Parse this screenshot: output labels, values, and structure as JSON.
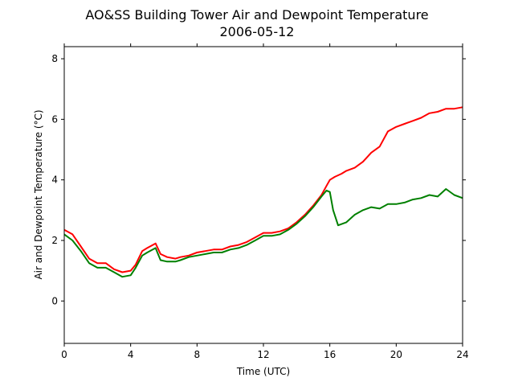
{
  "chart_data": {
    "type": "line",
    "title": "AO&SS Building Tower Air and Dewpoint Temperature",
    "subtitle": "2006-05-12",
    "xlabel": "Time (UTC)",
    "ylabel": "Air and Dewpoint Temperature (°C)",
    "xlim": [
      0,
      24
    ],
    "ylim": [
      -1.4,
      8.4
    ],
    "xticks": [
      "0",
      "4",
      "8",
      "12",
      "16",
      "20",
      "24"
    ],
    "yticks": [
      "0",
      "2",
      "4",
      "6",
      "8"
    ],
    "grid": false,
    "legend": "none",
    "series": [
      {
        "color": "#ff0000",
        "x": [
          0,
          0.5,
          1,
          1.5,
          2,
          2.5,
          3,
          3.5,
          4,
          4.3,
          4.7,
          5,
          5.5,
          5.8,
          6.2,
          6.7,
          7,
          7.5,
          8,
          8.5,
          9,
          9.5,
          10,
          10.5,
          11,
          11.5,
          12,
          12.5,
          13,
          13.5,
          14,
          14.5,
          15,
          15.5,
          15.8,
          16,
          16.3,
          16.7,
          17,
          17.5,
          18,
          18.5,
          19,
          19.5,
          20,
          20.5,
          21,
          21.5,
          22,
          22.5,
          23,
          23.5,
          24
        ],
        "y": [
          2.35,
          2.2,
          1.8,
          1.4,
          1.25,
          1.25,
          1.05,
          0.95,
          1.0,
          1.2,
          1.65,
          1.75,
          1.9,
          1.55,
          1.45,
          1.4,
          1.45,
          1.5,
          1.6,
          1.65,
          1.7,
          1.7,
          1.8,
          1.85,
          1.95,
          2.1,
          2.25,
          2.25,
          2.3,
          2.4,
          2.6,
          2.85,
          3.15,
          3.5,
          3.8,
          4.0,
          4.1,
          4.2,
          4.3,
          4.4,
          4.6,
          4.9,
          5.1,
          5.6,
          5.75,
          5.85,
          5.95,
          6.05,
          6.2,
          6.25,
          6.35,
          6.35,
          6.4
        ]
      },
      {
        "color": "#008000",
        "x": [
          0,
          0.5,
          1,
          1.5,
          2,
          2.5,
          3,
          3.5,
          4,
          4.3,
          4.7,
          5,
          5.5,
          5.8,
          6.2,
          6.7,
          7,
          7.5,
          8,
          8.5,
          9,
          9.5,
          10,
          10.5,
          11,
          11.5,
          12,
          12.5,
          13,
          13.5,
          14,
          14.5,
          15,
          15.5,
          15.8,
          16,
          16.2,
          16.5,
          17,
          17.5,
          18,
          18.5,
          19,
          19.5,
          20,
          20.5,
          21,
          21.5,
          22,
          22.5,
          23,
          23.5,
          24
        ],
        "y": [
          2.2,
          2.0,
          1.65,
          1.25,
          1.1,
          1.1,
          0.95,
          0.8,
          0.85,
          1.1,
          1.5,
          1.6,
          1.75,
          1.35,
          1.3,
          1.3,
          1.35,
          1.45,
          1.5,
          1.55,
          1.6,
          1.6,
          1.7,
          1.75,
          1.85,
          2.0,
          2.15,
          2.15,
          2.2,
          2.35,
          2.55,
          2.8,
          3.1,
          3.45,
          3.65,
          3.6,
          3.0,
          2.5,
          2.6,
          2.85,
          3.0,
          3.1,
          3.05,
          3.2,
          3.2,
          3.25,
          3.35,
          3.4,
          3.5,
          3.45,
          3.7,
          3.5,
          3.4
        ]
      }
    ]
  }
}
